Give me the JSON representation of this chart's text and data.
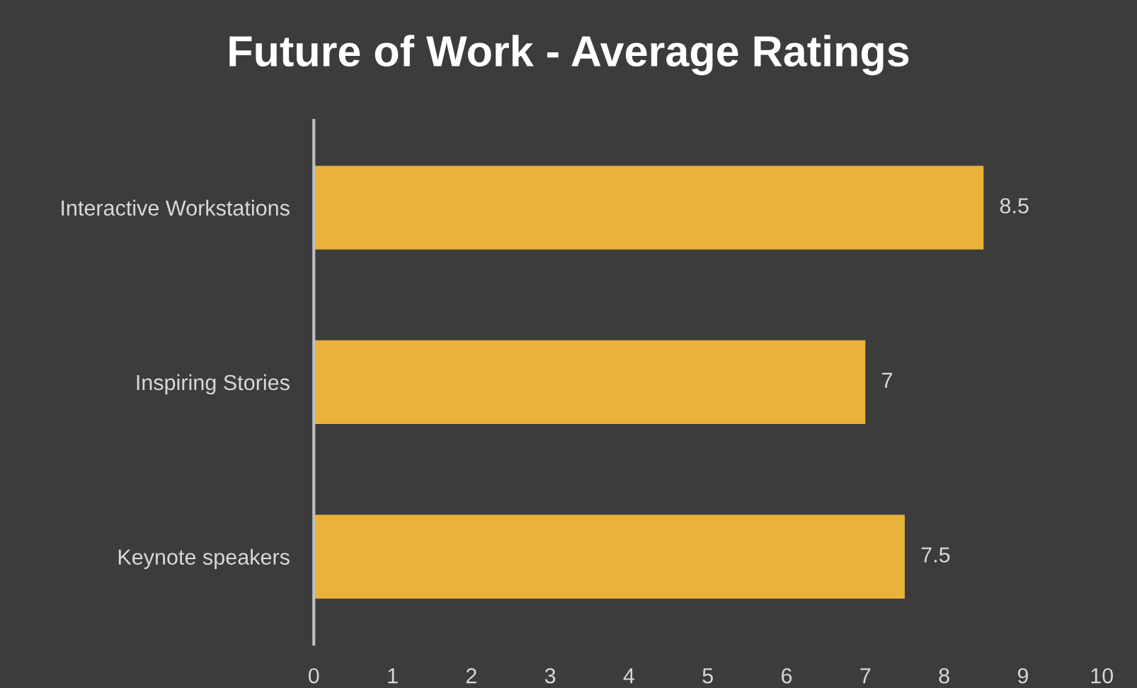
{
  "chart_data": {
    "type": "bar",
    "orientation": "horizontal",
    "title": "Future of Work - Average Ratings",
    "categories": [
      "Interactive Workstations",
      "Inspiring Stories",
      "Keynote speakers"
    ],
    "values": [
      8.5,
      7,
      7.5
    ],
    "color": "#e9b23a",
    "xlim": [
      0,
      10
    ],
    "xticks": [
      0,
      1,
      2,
      3,
      4,
      5,
      6,
      7,
      8,
      9,
      10
    ],
    "grid": false,
    "data_labels": true
  }
}
